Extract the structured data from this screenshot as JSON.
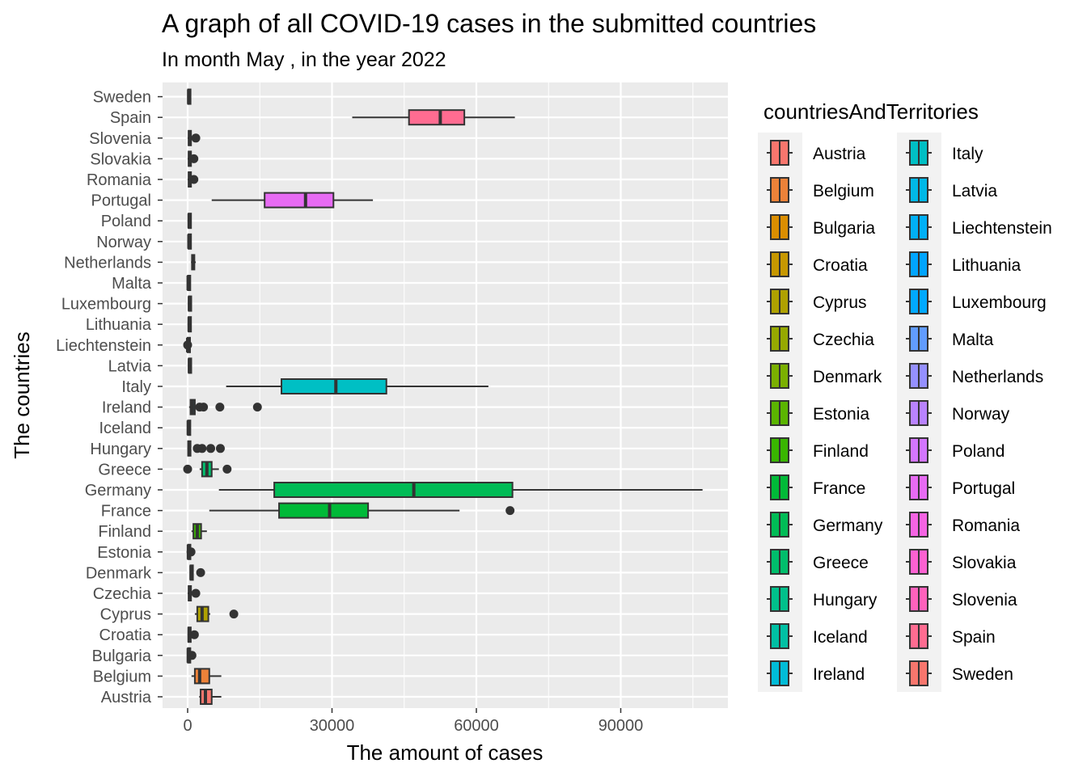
{
  "chart_data": {
    "type": "boxplot",
    "title": "A graph of all COVID-19 cases in the submitted countries",
    "subtitle": "In month May , in the year 2022",
    "xlabel": "The amount of cases",
    "ylabel": "The countries",
    "xlim": [
      -4000,
      112000
    ],
    "x_ticks": [
      0,
      30000,
      60000,
      90000
    ],
    "x_tick_labels": [
      "0",
      "30000",
      "60000",
      "90000"
    ],
    "grid": true,
    "legend": {
      "title": "countriesAndTerritories",
      "position": "right"
    },
    "series": [
      {
        "name": "Austria",
        "color": "#F8766D",
        "whisker_low": 2400,
        "q1": 2700,
        "median": 3700,
        "q3": 5000,
        "whisker_high": 7000,
        "outliers": []
      },
      {
        "name": "Belgium",
        "color": "#EC8239",
        "whisker_low": 800,
        "q1": 1500,
        "median": 2500,
        "q3": 4500,
        "whisker_high": 7000,
        "outliers": []
      },
      {
        "name": "Bulgaria",
        "color": "#DB8E00",
        "whisker_low": 0,
        "q1": 60,
        "median": 120,
        "q3": 250,
        "whisker_high": 600,
        "outliers": [
          900
        ]
      },
      {
        "name": "Croatia",
        "color": "#C79800",
        "whisker_low": 0,
        "q1": 150,
        "median": 300,
        "q3": 500,
        "whisker_high": 900,
        "outliers": [
          1400
        ]
      },
      {
        "name": "Cyprus",
        "color": "#AFA100",
        "whisker_low": 1500,
        "q1": 2000,
        "median": 3000,
        "q3": 4300,
        "whisker_high": 4700,
        "outliers": [
          9600
        ]
      },
      {
        "name": "Czechia",
        "color": "#96A900",
        "whisker_low": 0,
        "q1": 200,
        "median": 400,
        "q3": 700,
        "whisker_high": 1100,
        "outliers": [
          1700
        ]
      },
      {
        "name": "Denmark",
        "color": "#7BB000",
        "whisker_low": 400,
        "q1": 600,
        "median": 700,
        "q3": 900,
        "whisker_high": 1200,
        "outliers": [
          2700
        ]
      },
      {
        "name": "Estonia",
        "color": "#5BB500",
        "whisker_low": 0,
        "q1": 80,
        "median": 150,
        "q3": 250,
        "whisker_high": 500,
        "outliers": [
          700
        ]
      },
      {
        "name": "Finland",
        "color": "#39B600",
        "whisker_low": 800,
        "q1": 1200,
        "median": 2000,
        "q3": 2800,
        "whisker_high": 4000,
        "outliers": []
      },
      {
        "name": "France",
        "color": "#00BA38",
        "whisker_low": 4500,
        "q1": 19000,
        "median": 29500,
        "q3": 37500,
        "whisker_high": 56500,
        "outliers": [
          67000
        ]
      },
      {
        "name": "Germany",
        "color": "#00BC56",
        "whisker_low": 6500,
        "q1": 18000,
        "median": 47000,
        "q3": 67500,
        "whisker_high": 107000,
        "outliers": []
      },
      {
        "name": "Greece",
        "color": "#00BE6C",
        "whisker_low": 2500,
        "q1": 3000,
        "median": 4000,
        "q3": 5000,
        "whisker_high": 6500,
        "outliers": [
          0,
          8200
        ]
      },
      {
        "name": "Hungary",
        "color": "#00C08B",
        "whisker_low": 0,
        "q1": 100,
        "median": 300,
        "q3": 500,
        "whisker_high": 700,
        "outliers": [
          2000,
          3000,
          4800,
          6800
        ]
      },
      {
        "name": "Iceland",
        "color": "#00C0A4",
        "whisker_low": 0,
        "q1": 60,
        "median": 120,
        "q3": 200,
        "whisker_high": 300,
        "outliers": []
      },
      {
        "name": "Ireland",
        "color": "#00BCD8",
        "whisker_low": 300,
        "q1": 600,
        "median": 1000,
        "q3": 1500,
        "whisker_high": 2000,
        "outliers": [
          2500,
          3300,
          6700,
          14500
        ]
      },
      {
        "name": "Italy",
        "color": "#00BFC4",
        "whisker_low": 8000,
        "q1": 19500,
        "median": 30800,
        "q3": 41300,
        "whisker_high": 62500,
        "outliers": []
      },
      {
        "name": "Latvia",
        "color": "#00B8E7",
        "whisker_low": 150,
        "q1": 250,
        "median": 350,
        "q3": 450,
        "whisker_high": 550,
        "outliers": []
      },
      {
        "name": "Liechtenstein",
        "color": "#00B0F6",
        "whisker_low": 0,
        "q1": 0,
        "median": 0,
        "q3": 10,
        "whisker_high": 20,
        "outliers": [
          0
        ]
      },
      {
        "name": "Lithuania",
        "color": "#00A5FF",
        "whisker_low": 100,
        "q1": 200,
        "median": 300,
        "q3": 400,
        "whisker_high": 500,
        "outliers": []
      },
      {
        "name": "Luxembourg",
        "color": "#00A9FF",
        "whisker_low": 150,
        "q1": 250,
        "median": 350,
        "q3": 450,
        "whisker_high": 600,
        "outliers": []
      },
      {
        "name": "Malta",
        "color": "#619CFF",
        "whisker_low": 0,
        "q1": 50,
        "median": 100,
        "q3": 150,
        "whisker_high": 200,
        "outliers": []
      },
      {
        "name": "Netherlands",
        "color": "#9590FF",
        "whisker_low": 700,
        "q1": 900,
        "median": 1100,
        "q3": 1400,
        "whisker_high": 1700,
        "outliers": []
      },
      {
        "name": "Norway",
        "color": "#B983FF",
        "whisker_low": 100,
        "q1": 200,
        "median": 250,
        "q3": 350,
        "whisker_high": 450,
        "outliers": []
      },
      {
        "name": "Poland",
        "color": "#D376FF",
        "whisker_low": 100,
        "q1": 200,
        "median": 300,
        "q3": 400,
        "whisker_high": 500,
        "outliers": []
      },
      {
        "name": "Portugal",
        "color": "#E76BF3",
        "whisker_low": 5000,
        "q1": 16000,
        "median": 24500,
        "q3": 30300,
        "whisker_high": 38500,
        "outliers": []
      },
      {
        "name": "Romania",
        "color": "#F564E3",
        "whisker_low": 0,
        "q1": 200,
        "median": 400,
        "q3": 700,
        "whisker_high": 900,
        "outliers": [
          1300
        ]
      },
      {
        "name": "Slovakia",
        "color": "#FD61D1",
        "whisker_low": 0,
        "q1": 200,
        "median": 400,
        "q3": 700,
        "whisker_high": 900,
        "outliers": [
          1300
        ]
      },
      {
        "name": "Slovenia",
        "color": "#FF62BC",
        "whisker_low": 0,
        "q1": 200,
        "median": 400,
        "q3": 700,
        "whisker_high": 1200,
        "outliers": [
          1700
        ]
      },
      {
        "name": "Spain",
        "color": "#FF6C91",
        "whisker_low": 34200,
        "q1": 46000,
        "median": 52500,
        "q3": 57500,
        "whisker_high": 68000,
        "outliers": []
      },
      {
        "name": "Sweden",
        "color": "#F8766D",
        "whisker_low": 0,
        "q1": 100,
        "median": 200,
        "q3": 400,
        "whisker_high": 600,
        "outliers": []
      }
    ]
  }
}
